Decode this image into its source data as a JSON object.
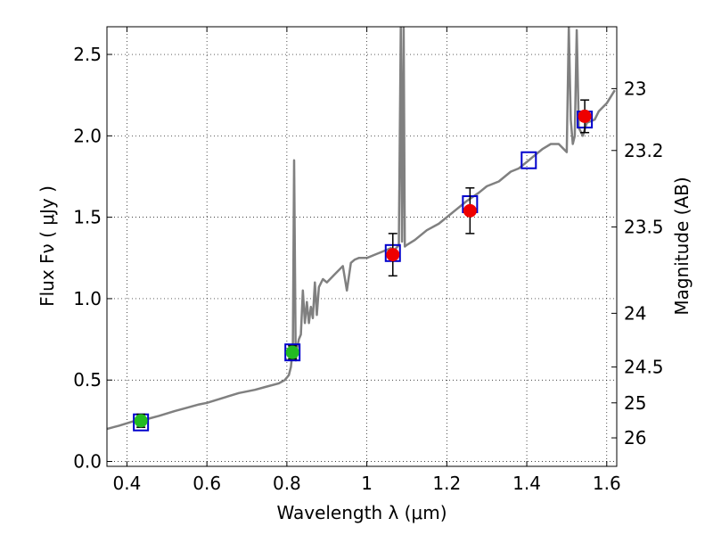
{
  "chart_data": {
    "type": "scatter",
    "xlabel": "Wavelength  λ (μm)",
    "ylabel": "Flux  Fν  ( μJy )",
    "y2label": "Magnitude (AB)",
    "xlim": [
      0.35,
      1.625
    ],
    "ylim": [
      -0.03,
      2.67
    ],
    "grid": true,
    "x_ticks": [
      0.4,
      0.6,
      0.8,
      1.0,
      1.2,
      1.4,
      1.6
    ],
    "x_tick_labels": [
      "0.4",
      "0.6",
      "0.8",
      "1",
      "1.2",
      "1.4",
      "1.6"
    ],
    "y_ticks": [
      0.0,
      0.5,
      1.0,
      1.5,
      2.0,
      2.5
    ],
    "y_tick_labels": [
      "0.0",
      "0.5",
      "1.0",
      "1.5",
      "2.0",
      "2.5"
    ],
    "y2_ticks": [
      {
        "label": "23",
        "flux": 2.29
      },
      {
        "label": "23.2",
        "flux": 1.91
      },
      {
        "label": "23.5",
        "flux": 1.44
      },
      {
        "label": "24",
        "flux": 0.91
      },
      {
        "label": "24.5",
        "flux": 0.58
      },
      {
        "label": "25",
        "flux": 0.36
      },
      {
        "label": "26",
        "flux": 0.145
      }
    ],
    "colors": {
      "model": "#808080",
      "green_points": "#22bb22",
      "red_points": "#ee0000",
      "model_boxes": "#0000cc",
      "errorbars": "#000000"
    },
    "series": [
      {
        "kind": "line",
        "style": "model spectrum",
        "x": [
          0.35,
          0.38,
          0.42,
          0.45,
          0.48,
          0.52,
          0.55,
          0.58,
          0.6,
          0.64,
          0.68,
          0.72,
          0.75,
          0.78,
          0.795,
          0.805,
          0.81,
          0.815,
          0.818,
          0.822,
          0.826,
          0.83,
          0.835,
          0.84,
          0.845,
          0.85,
          0.855,
          0.86,
          0.865,
          0.87,
          0.875,
          0.88,
          0.89,
          0.9,
          0.92,
          0.94,
          0.95,
          0.96,
          0.97,
          0.98,
          1.0,
          1.02,
          1.04,
          1.06,
          1.07,
          1.08,
          1.085,
          1.088,
          1.092,
          1.095,
          1.1,
          1.12,
          1.15,
          1.18,
          1.2,
          1.22,
          1.25,
          1.28,
          1.3,
          1.33,
          1.36,
          1.38,
          1.4,
          1.42,
          1.44,
          1.46,
          1.48,
          1.5,
          1.505,
          1.51,
          1.515,
          1.52,
          1.525,
          1.53,
          1.54,
          1.55,
          1.57,
          1.58,
          1.6,
          1.62
        ],
        "y": [
          0.2,
          0.22,
          0.25,
          0.26,
          0.28,
          0.31,
          0.33,
          0.35,
          0.36,
          0.39,
          0.42,
          0.44,
          0.46,
          0.48,
          0.5,
          0.53,
          0.58,
          0.7,
          1.85,
          0.62,
          0.7,
          0.75,
          0.78,
          1.05,
          0.85,
          0.98,
          0.85,
          0.95,
          0.88,
          1.1,
          0.9,
          1.07,
          1.12,
          1.1,
          1.15,
          1.2,
          1.05,
          1.22,
          1.24,
          1.25,
          1.25,
          1.27,
          1.29,
          1.31,
          1.3,
          1.33,
          2.67,
          1.35,
          2.67,
          1.32,
          1.33,
          1.36,
          1.42,
          1.46,
          1.5,
          1.54,
          1.6,
          1.65,
          1.69,
          1.72,
          1.78,
          1.8,
          1.84,
          1.88,
          1.92,
          1.95,
          1.95,
          1.9,
          2.67,
          2.1,
          1.95,
          2.0,
          2.65,
          2.05,
          2.0,
          2.08,
          2.1,
          2.15,
          2.2,
          2.28
        ]
      },
      {
        "kind": "boxes",
        "style": "model photometry",
        "x": [
          0.435,
          0.814,
          1.065,
          1.258,
          1.405,
          1.545
        ],
        "y": [
          0.24,
          0.67,
          1.28,
          1.58,
          1.85,
          2.1
        ]
      },
      {
        "kind": "points",
        "style": "green",
        "x": [
          0.435,
          0.814
        ],
        "y": [
          0.25,
          0.67
        ],
        "err": [
          0.04,
          0.04
        ]
      },
      {
        "kind": "points",
        "style": "red",
        "x": [
          1.065,
          1.258,
          1.545
        ],
        "y": [
          1.27,
          1.54,
          2.12
        ],
        "err": [
          0.13,
          0.14,
          0.1
        ]
      }
    ]
  }
}
